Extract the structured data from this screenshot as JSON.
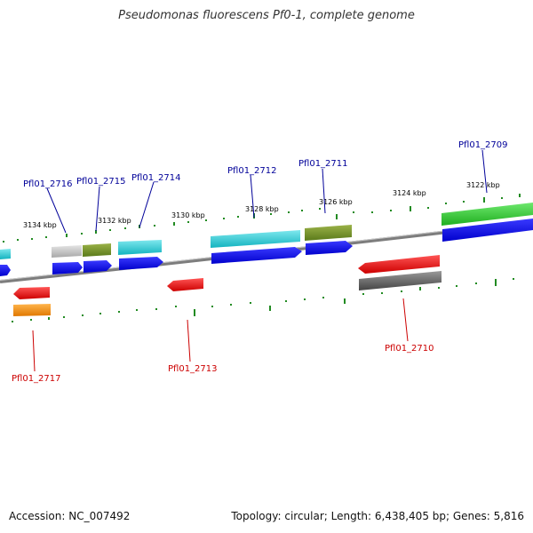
{
  "title": "Pseudomonas fluorescens Pf0-1, complete genome",
  "footer": {
    "accession": "Accession: NC_007492",
    "summary": "Topology: circular; Length: 6,438,405 bp; Genes: 5,816"
  },
  "colors": {
    "top_label": "#000099",
    "bottom_label": "#cc0000",
    "ticks": "#228B22",
    "backbone": "#888888"
  },
  "scale_labels": [
    "3134 kbp",
    "3132 kbp",
    "3130 kbp",
    "3128 kbp",
    "3126 kbp",
    "3124 kbp",
    "3122 kbp"
  ],
  "top_gene_labels": [
    "Pfl01_2716",
    "Pfl01_2715",
    "Pfl01_2714",
    "Pfl01_2712",
    "Pfl01_2711",
    "Pfl01_2709"
  ],
  "bottom_gene_labels": [
    "Pfl01_2717",
    "Pfl01_2713",
    "Pfl01_2710"
  ]
}
